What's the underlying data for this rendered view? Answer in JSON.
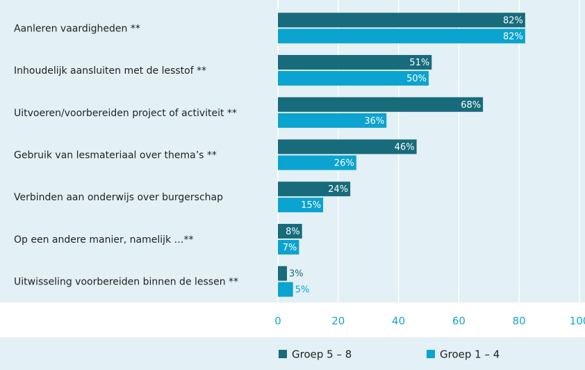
{
  "chart_data": {
    "type": "bar",
    "orientation": "horizontal",
    "categories": [
      "Aanleren vaardigheden **",
      "Inhoudelijk aansluiten met de lesstof **",
      "Uitvoeren/voorbereiden project of activiteit **",
      "Gebruik van lesmateriaal over thema’s **",
      "Verbinden aan onderwijs over burgerschap",
      "Op een andere manier, namelijk …**",
      "Uitwisseling voorbereiden binnen de lessen **"
    ],
    "series": [
      {
        "name": "Groep 5 – 8",
        "color": "#176b7b",
        "values": [
          82,
          51,
          68,
          46,
          24,
          8,
          3
        ],
        "value_labels": [
          "82%",
          "51%",
          "68%",
          "46%",
          "24%",
          "8%",
          "3%"
        ]
      },
      {
        "name": "Groep 1 – 4",
        "color": "#0ba3cf",
        "values": [
          82,
          50,
          36,
          26,
          15,
          7,
          5
        ],
        "value_labels": [
          "82%",
          "50%",
          "36%",
          "26%",
          "15%",
          "7%",
          "5%"
        ]
      }
    ],
    "xlim": [
      0,
      100
    ],
    "xticks": [
      0,
      20,
      40,
      60,
      80,
      100
    ],
    "grid": true,
    "legend": "bottom"
  }
}
